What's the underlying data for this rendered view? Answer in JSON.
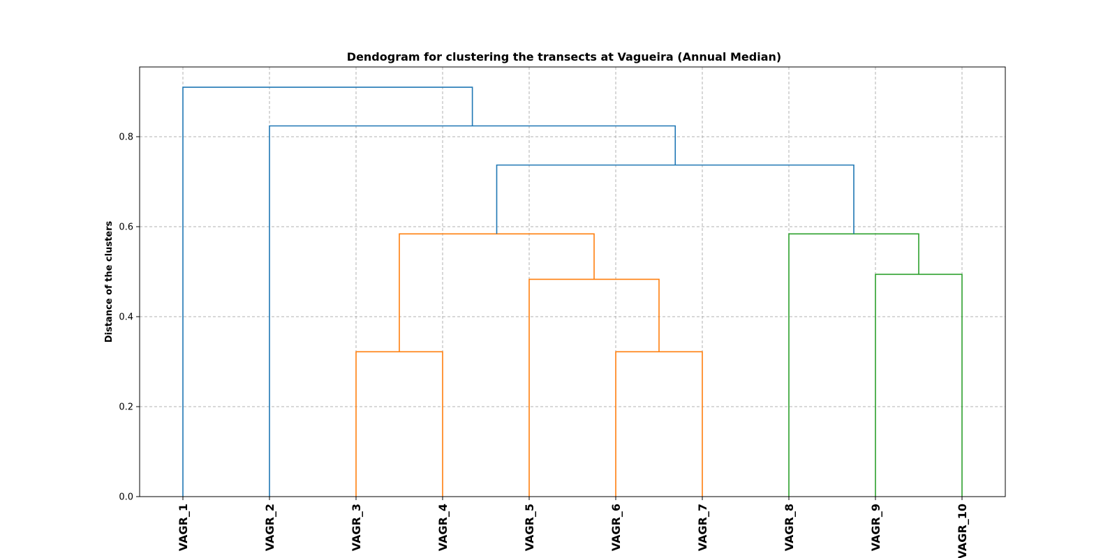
{
  "chart_data": {
    "type": "dendrogram",
    "title": "Dendogram for clustering the transects at Vagueira (Annual Median)",
    "xlabel": "",
    "ylabel": "Distance of the clusters",
    "ylim": [
      0,
      0.955
    ],
    "yticks": [
      "0.0",
      "0.2",
      "0.4",
      "0.6",
      "0.8"
    ],
    "ytick_values": [
      0.0,
      0.2,
      0.4,
      0.6,
      0.8
    ],
    "grid": true,
    "leaves": [
      "VAGR_1",
      "VAGR_2",
      "VAGR_3",
      "VAGR_4",
      "VAGR_5",
      "VAGR_6",
      "VAGR_7",
      "VAGR_8",
      "VAGR_9",
      "VAGR_10"
    ],
    "colors": {
      "cluster_orange": "#ff7f0e",
      "cluster_green": "#2ca02c",
      "above_threshold": "#1f77b4"
    },
    "merges": [
      {
        "left": "VAGR_3",
        "right": "VAGR_4",
        "height": 0.322,
        "color": "cluster_orange"
      },
      {
        "left": "VAGR_6",
        "right": "VAGR_7",
        "height": 0.322,
        "color": "cluster_orange"
      },
      {
        "left": "VAGR_5",
        "right": "VAGR_6+VAGR_7",
        "height": 0.483,
        "color": "cluster_orange"
      },
      {
        "left": "VAGR_3+VAGR_4",
        "right": "VAGR_5+VAGR_6+VAGR_7",
        "height": 0.584,
        "color": "cluster_orange"
      },
      {
        "left": "VAGR_9",
        "right": "VAGR_10",
        "height": 0.494,
        "color": "cluster_green"
      },
      {
        "left": "VAGR_8",
        "right": "VAGR_9+VAGR_10",
        "height": 0.584,
        "color": "cluster_green"
      },
      {
        "left": "VAGR_3..VAGR_7",
        "right": "VAGR_8..VAGR_10",
        "height": 0.737,
        "color": "above_threshold"
      },
      {
        "left": "VAGR_2",
        "right": "VAGR_3..VAGR_10",
        "height": 0.824,
        "color": "above_threshold"
      },
      {
        "left": "VAGR_1",
        "right": "VAGR_2..VAGR_10",
        "height": 0.91,
        "color": "above_threshold"
      }
    ]
  }
}
